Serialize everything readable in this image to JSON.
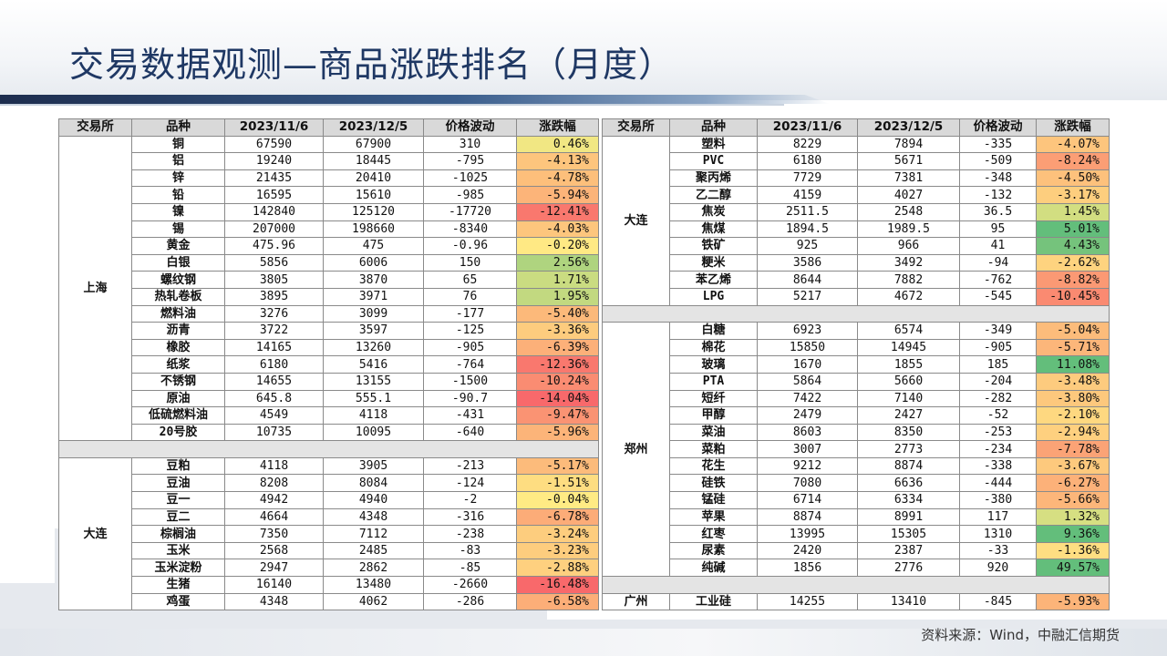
{
  "title": "交易数据观测—商品涨跌排名（月度）",
  "source": "资料来源：Wind，中融汇信期货",
  "headers": [
    "交易所",
    "品种",
    "2023/11/6",
    "2023/12/5",
    "价格波动",
    "涨跌幅"
  ],
  "colors": {
    "title": "#1f3864",
    "header_bg": "#d9d9d9",
    "pct_text": "#ff1a1a",
    "scale_red": "#f8696b",
    "scale_yellow": "#ffeb84",
    "scale_green": "#63be7b"
  },
  "left_groups": [
    {
      "exchange": "上海",
      "rows": [
        {
          "product": "铜",
          "d1": "67590",
          "d2": "67900",
          "change": "310",
          "pct": "0.46%",
          "pv": 0.46
        },
        {
          "product": "铝",
          "d1": "19240",
          "d2": "18445",
          "change": "-795",
          "pct": "-4.13%",
          "pv": -4.13
        },
        {
          "product": "锌",
          "d1": "21435",
          "d2": "20410",
          "change": "-1025",
          "pct": "-4.78%",
          "pv": -4.78
        },
        {
          "product": "铅",
          "d1": "16595",
          "d2": "15610",
          "change": "-985",
          "pct": "-5.94%",
          "pv": -5.94
        },
        {
          "product": "镍",
          "d1": "142840",
          "d2": "125120",
          "change": "-17720",
          "pct": "-12.41%",
          "pv": -12.41
        },
        {
          "product": "锡",
          "d1": "207000",
          "d2": "198660",
          "change": "-8340",
          "pct": "-4.03%",
          "pv": -4.03
        },
        {
          "product": "黄金",
          "d1": "475.96",
          "d2": "475",
          "change": "-0.96",
          "pct": "-0.20%",
          "pv": -0.2
        },
        {
          "product": "白银",
          "d1": "5856",
          "d2": "6006",
          "change": "150",
          "pct": "2.56%",
          "pv": 2.56
        },
        {
          "product": "螺纹钢",
          "d1": "3805",
          "d2": "3870",
          "change": "65",
          "pct": "1.71%",
          "pv": 1.71
        },
        {
          "product": "热轧卷板",
          "d1": "3895",
          "d2": "3971",
          "change": "76",
          "pct": "1.95%",
          "pv": 1.95
        },
        {
          "product": "燃料油",
          "d1": "3276",
          "d2": "3099",
          "change": "-177",
          "pct": "-5.40%",
          "pv": -5.4
        },
        {
          "product": "沥青",
          "d1": "3722",
          "d2": "3597",
          "change": "-125",
          "pct": "-3.36%",
          "pv": -3.36
        },
        {
          "product": "橡胶",
          "d1": "14165",
          "d2": "13260",
          "change": "-905",
          "pct": "-6.39%",
          "pv": -6.39
        },
        {
          "product": "纸浆",
          "d1": "6180",
          "d2": "5416",
          "change": "-764",
          "pct": "-12.36%",
          "pv": -12.36
        },
        {
          "product": "不锈钢",
          "d1": "14655",
          "d2": "13155",
          "change": "-1500",
          "pct": "-10.24%",
          "pv": -10.24
        },
        {
          "product": "原油",
          "d1": "645.8",
          "d2": "555.1",
          "change": "-90.7",
          "pct": "-14.04%",
          "pv": -14.04
        },
        {
          "product": "低硫燃料油",
          "d1": "4549",
          "d2": "4118",
          "change": "-431",
          "pct": "-9.47%",
          "pv": -9.47
        },
        {
          "product": "20号胶",
          "d1": "10735",
          "d2": "10095",
          "change": "-640",
          "pct": "-5.96%",
          "pv": -5.96
        }
      ]
    },
    {
      "exchange": "大连",
      "rows": [
        {
          "product": "豆粕",
          "d1": "4118",
          "d2": "3905",
          "change": "-213",
          "pct": "-5.17%",
          "pv": -5.17
        },
        {
          "product": "豆油",
          "d1": "8208",
          "d2": "8084",
          "change": "-124",
          "pct": "-1.51%",
          "pv": -1.51
        },
        {
          "product": "豆一",
          "d1": "4942",
          "d2": "4940",
          "change": "-2",
          "pct": "-0.04%",
          "pv": -0.04
        },
        {
          "product": "豆二",
          "d1": "4664",
          "d2": "4348",
          "change": "-316",
          "pct": "-6.78%",
          "pv": -6.78
        },
        {
          "product": "棕榈油",
          "d1": "7350",
          "d2": "7112",
          "change": "-238",
          "pct": "-3.24%",
          "pv": -3.24
        },
        {
          "product": "玉米",
          "d1": "2568",
          "d2": "2485",
          "change": "-83",
          "pct": "-3.23%",
          "pv": -3.23
        },
        {
          "product": "玉米淀粉",
          "d1": "2947",
          "d2": "2862",
          "change": "-85",
          "pct": "-2.88%",
          "pv": -2.88
        },
        {
          "product": "生猪",
          "d1": "16140",
          "d2": "13480",
          "change": "-2660",
          "pct": "-16.48%",
          "pv": -16.48
        },
        {
          "product": "鸡蛋",
          "d1": "4348",
          "d2": "4062",
          "change": "-286",
          "pct": "-6.58%",
          "pv": -6.58
        }
      ]
    }
  ],
  "right_groups": [
    {
      "exchange": "大连",
      "rows": [
        {
          "product": "塑料",
          "d1": "8229",
          "d2": "7894",
          "change": "-335",
          "pct": "-4.07%",
          "pv": -4.07
        },
        {
          "product": "PVC",
          "d1": "6180",
          "d2": "5671",
          "change": "-509",
          "pct": "-8.24%",
          "pv": -8.24
        },
        {
          "product": "聚丙烯",
          "d1": "7729",
          "d2": "7381",
          "change": "-348",
          "pct": "-4.50%",
          "pv": -4.5
        },
        {
          "product": "乙二醇",
          "d1": "4159",
          "d2": "4027",
          "change": "-132",
          "pct": "-3.17%",
          "pv": -3.17
        },
        {
          "product": "焦炭",
          "d1": "2511.5",
          "d2": "2548",
          "change": "36.5",
          "pct": "1.45%",
          "pv": 1.45
        },
        {
          "product": "焦煤",
          "d1": "1894.5",
          "d2": "1989.5",
          "change": "95",
          "pct": "5.01%",
          "pv": 5.01
        },
        {
          "product": "铁矿",
          "d1": "925",
          "d2": "966",
          "change": "41",
          "pct": "4.43%",
          "pv": 4.43
        },
        {
          "product": "粳米",
          "d1": "3586",
          "d2": "3492",
          "change": "-94",
          "pct": "-2.62%",
          "pv": -2.62
        },
        {
          "product": "苯乙烯",
          "d1": "8644",
          "d2": "7882",
          "change": "-762",
          "pct": "-8.82%",
          "pv": -8.82
        },
        {
          "product": "LPG",
          "d1": "5217",
          "d2": "4672",
          "change": "-545",
          "pct": "-10.45%",
          "pv": -10.45
        }
      ]
    },
    {
      "exchange": "郑州",
      "rows": [
        {
          "product": "白糖",
          "d1": "6923",
          "d2": "6574",
          "change": "-349",
          "pct": "-5.04%",
          "pv": -5.04
        },
        {
          "product": "棉花",
          "d1": "15850",
          "d2": "14945",
          "change": "-905",
          "pct": "-5.71%",
          "pv": -5.71
        },
        {
          "product": "玻璃",
          "d1": "1670",
          "d2": "1855",
          "change": "185",
          "pct": "11.08%",
          "pv": 11.08
        },
        {
          "product": "PTA",
          "d1": "5864",
          "d2": "5660",
          "change": "-204",
          "pct": "-3.48%",
          "pv": -3.48
        },
        {
          "product": "短纤",
          "d1": "7422",
          "d2": "7140",
          "change": "-282",
          "pct": "-3.80%",
          "pv": -3.8
        },
        {
          "product": "甲醇",
          "d1": "2479",
          "d2": "2427",
          "change": "-52",
          "pct": "-2.10%",
          "pv": -2.1
        },
        {
          "product": "菜油",
          "d1": "8603",
          "d2": "8350",
          "change": "-253",
          "pct": "-2.94%",
          "pv": -2.94
        },
        {
          "product": "菜粕",
          "d1": "3007",
          "d2": "2773",
          "change": "-234",
          "pct": "-7.78%",
          "pv": -7.78
        },
        {
          "product": "花生",
          "d1": "9212",
          "d2": "8874",
          "change": "-338",
          "pct": "-3.67%",
          "pv": -3.67
        },
        {
          "product": "硅铁",
          "d1": "7080",
          "d2": "6636",
          "change": "-444",
          "pct": "-6.27%",
          "pv": -6.27
        },
        {
          "product": "锰硅",
          "d1": "6714",
          "d2": "6334",
          "change": "-380",
          "pct": "-5.66%",
          "pv": -5.66
        },
        {
          "product": "苹果",
          "d1": "8874",
          "d2": "8991",
          "change": "117",
          "pct": "1.32%",
          "pv": 1.32
        },
        {
          "product": "红枣",
          "d1": "13995",
          "d2": "15305",
          "change": "1310",
          "pct": "9.36%",
          "pv": 9.36
        },
        {
          "product": "尿素",
          "d1": "2420",
          "d2": "2387",
          "change": "-33",
          "pct": "-1.36%",
          "pv": -1.36
        },
        {
          "product": "纯碱",
          "d1": "1856",
          "d2": "2776",
          "change": "920",
          "pct": "49.57%",
          "pv": 49.57
        }
      ]
    },
    {
      "exchange": "广州",
      "rows": [
        {
          "product": "工业硅",
          "d1": "14255",
          "d2": "13410",
          "change": "-845",
          "pct": "-5.93%",
          "pv": -5.93
        }
      ]
    }
  ]
}
